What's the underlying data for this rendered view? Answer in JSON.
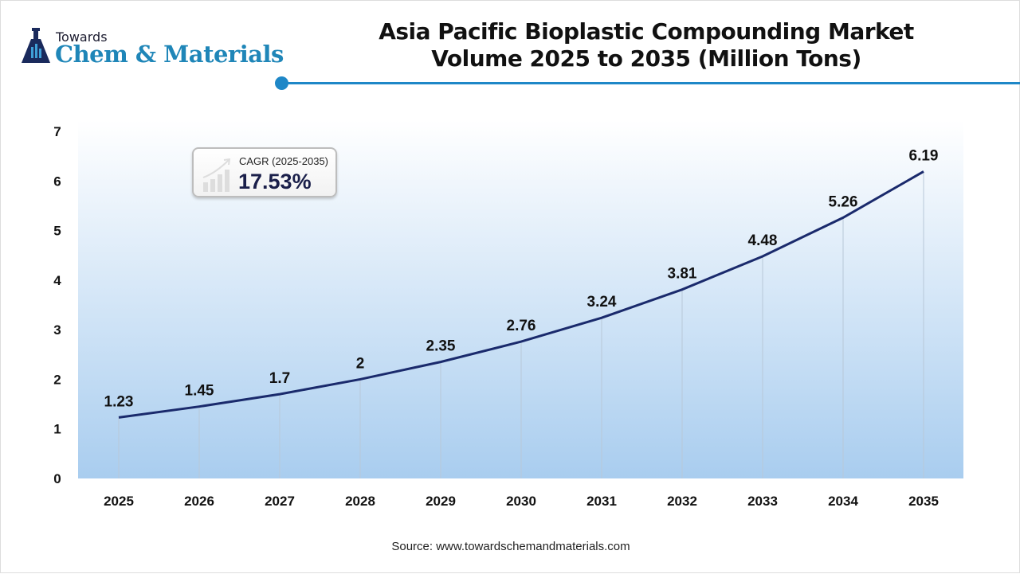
{
  "logo": {
    "line1": "Towards",
    "line2": "Chem & Materials"
  },
  "title": {
    "line1": "Asia Pacific Bioplastic Compounding Market",
    "line2": "Volume 2025 to 2035 (Million Tons)"
  },
  "cagr": {
    "label": "CAGR (2025-2035)",
    "value": "17.53%"
  },
  "source": "Source: www.towardschemandmaterials.com",
  "colors": {
    "line": "#1a2a6c",
    "accent": "#1e87c7",
    "area_bottom": "#a9cdef"
  },
  "chart_data": {
    "type": "line",
    "title": "Asia Pacific Bioplastic Compounding Market Volume 2025 to 2035 (Million Tons)",
    "xlabel": "",
    "ylabel": "",
    "categories": [
      "2025",
      "2026",
      "2027",
      "2028",
      "2029",
      "2030",
      "2031",
      "2032",
      "2033",
      "2034",
      "2035"
    ],
    "values": [
      1.23,
      1.45,
      1.7,
      2,
      2.35,
      2.76,
      3.24,
      3.81,
      4.48,
      5.26,
      6.19
    ],
    "labels": [
      "1.23",
      "1.45",
      "1.7",
      "2",
      "2.35",
      "2.76",
      "3.24",
      "3.81",
      "4.48",
      "5.26",
      "6.19"
    ],
    "ylim": [
      0,
      7
    ],
    "yticks": [
      "0",
      "1",
      "2",
      "3",
      "4",
      "5",
      "6",
      "7"
    ],
    "grid": false
  }
}
